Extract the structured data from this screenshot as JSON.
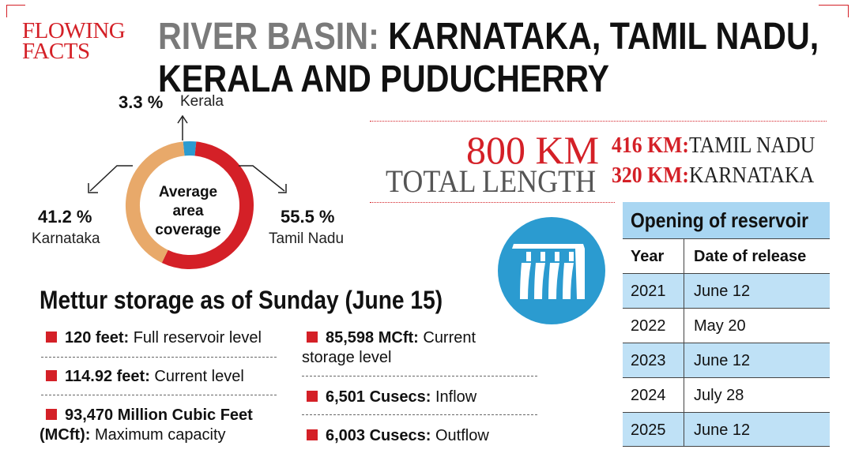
{
  "kicker": {
    "line1": "FLOWING",
    "line2": "FACTS"
  },
  "headline": {
    "grey_part": "RIVER BASIN:",
    "dark_part": "KARNATAKA, TAMIL NADU,",
    "line2": "KERALA AND PUDUCHERRY"
  },
  "length": {
    "total_value": "800 KM",
    "total_label": "TOTAL LENGTH",
    "states": [
      {
        "km": "416 KM:",
        "name": "TAMIL NADU"
      },
      {
        "km": "320 KM:",
        "name": "KARNATAKA"
      }
    ]
  },
  "coverage": {
    "center_label": [
      "Average",
      "area",
      "coverage"
    ],
    "segments": [
      {
        "state": "Kerala",
        "percent": 3.3,
        "label": "3.3 %",
        "color": "#2b9bd0"
      },
      {
        "state": "Tamil Nadu",
        "percent": 55.5,
        "label": "55.5 %",
        "color": "#d42027"
      },
      {
        "state": "Karnataka",
        "percent": 41.2,
        "label": "41.2 %",
        "color": "#e8a96a"
      }
    ]
  },
  "reservoir": {
    "title": "Opening of reservoir",
    "headers": [
      "Year",
      "Date of release"
    ],
    "rows": [
      {
        "year": "2021",
        "date": "June 12"
      },
      {
        "year": "2022",
        "date": "May 20"
      },
      {
        "year": "2023",
        "date": "June 12"
      },
      {
        "year": "2024",
        "date": "July 28"
      },
      {
        "year": "2025",
        "date": "June 12"
      }
    ]
  },
  "mettur": {
    "title": "Mettur storage as of Sunday (June 15)",
    "facts_left": [
      {
        "bold": "120 feet:",
        "text": " Full reservoir level"
      },
      {
        "bold": "114.92 feet:",
        "text": " Current level"
      },
      {
        "bold": "93,470 Million Cubic Feet",
        "bold2": "(MCft):",
        "text": " Maximum capacity"
      }
    ],
    "facts_right": [
      {
        "bold": "85,598 MCft:",
        "text": " Current",
        "text2": "storage level"
      },
      {
        "bold": "6,501 Cusecs:",
        "text": " Inflow"
      },
      {
        "bold": "6,003 Cusecs:",
        "text": " Outflow"
      }
    ]
  },
  "icons": {
    "dam": "dam-icon"
  },
  "colors": {
    "accent": "#d42027",
    "table_blue": "#bfe1f6",
    "icon_blue": "#2b9bd0"
  }
}
